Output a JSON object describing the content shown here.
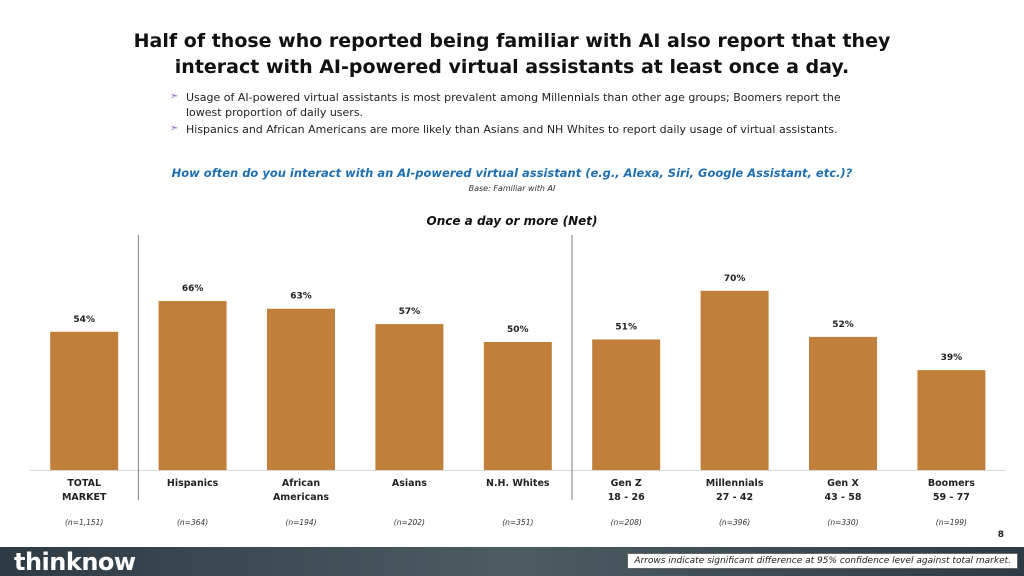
{
  "title": "Half of those who reported being familiar with AI also report that they interact with AI-powered virtual assistants at least once a day.",
  "bullets": [
    "Usage of AI-powered virtual assistants is most prevalent among Millennials than other age groups; Boomers report the lowest proportion of daily users.",
    "Hispanics and African Americans are more likely than Asians and NH Whites to report daily usage of virtual assistants."
  ],
  "question": "How often do you interact with an AI-powered virtual assistant (e.g., Alexa, Siri, Google Assistant, etc.)?",
  "base": "Base: Familiar with AI",
  "page_number": "8",
  "footer": {
    "logo": "thinknow",
    "note": "Arrows indicate significant difference at 95% confidence level against total market."
  },
  "colors": {
    "bar": "#c07f3a",
    "question": "#1f6fb0",
    "bullet": "#8e63c9"
  },
  "chart_data": {
    "type": "bar",
    "title": "Once a day or more (Net)",
    "categories": [
      [
        "TOTAL",
        "MARKET"
      ],
      [
        "Hispanics"
      ],
      [
        "African",
        "Americans"
      ],
      [
        "Asians"
      ],
      [
        "N.H. Whites"
      ],
      [
        "Gen Z",
        "18 - 26"
      ],
      [
        "Millennials",
        "27 - 42"
      ],
      [
        "Gen X",
        "43 - 58"
      ],
      [
        "Boomers",
        "59 - 77"
      ]
    ],
    "values": [
      54,
      66,
      63,
      57,
      50,
      51,
      70,
      52,
      39
    ],
    "value_labels": [
      "54%",
      "66%",
      "63%",
      "57%",
      "50%",
      "51%",
      "70%",
      "52%",
      "39%"
    ],
    "sample_sizes": [
      "(n=1,151)",
      "(n=364)",
      "(n=194)",
      "(n=202)",
      "(n=351)",
      "(n=208)",
      "(n=396)",
      "(n=330)",
      "(n=199)"
    ],
    "ylim": [
      0,
      100
    ],
    "xlabel": "",
    "ylabel": ""
  }
}
